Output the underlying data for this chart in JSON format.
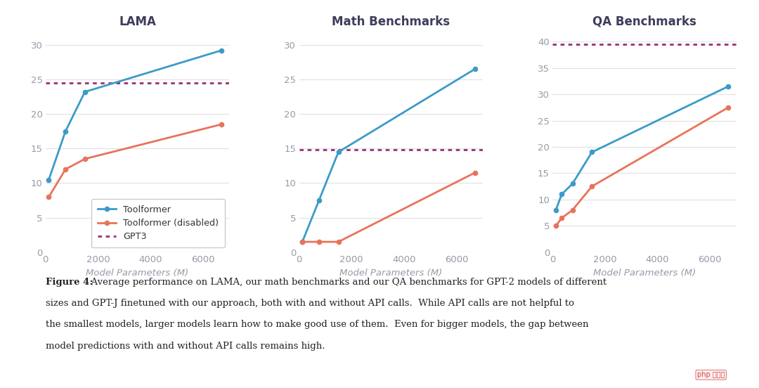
{
  "lama": {
    "title": "LAMA",
    "x": [
      125,
      760,
      1500,
      6700
    ],
    "toolformer": [
      10.5,
      17.5,
      23.2,
      29.2
    ],
    "disabled": [
      8.0,
      12.0,
      13.5,
      18.5
    ],
    "gpt3": 24.5,
    "ylim": [
      0,
      32
    ],
    "yticks": [
      0,
      5,
      10,
      15,
      20,
      25,
      30
    ]
  },
  "math": {
    "title": "Math Benchmarks",
    "x": [
      125,
      760,
      1500,
      6700
    ],
    "toolformer": [
      1.5,
      7.5,
      14.5,
      26.5
    ],
    "disabled": [
      1.5,
      1.5,
      1.5,
      11.5
    ],
    "gpt3": 14.8,
    "ylim": [
      0,
      32
    ],
    "yticks": [
      0,
      5,
      10,
      15,
      20,
      25,
      30
    ]
  },
  "qa": {
    "title": "QA Benchmarks",
    "x": [
      125,
      350,
      760,
      1500,
      6700
    ],
    "toolformer": [
      8.0,
      11.0,
      13.0,
      19.0,
      31.5
    ],
    "disabled": [
      5.0,
      6.5,
      8.0,
      12.5,
      27.5
    ],
    "gpt3": 39.5,
    "ylim": [
      0,
      42
    ],
    "yticks": [
      0,
      5,
      10,
      15,
      20,
      25,
      30,
      35,
      40
    ]
  },
  "colors": {
    "toolformer": "#3B9BC8",
    "disabled": "#E8735A",
    "gpt3": "#9B2D7A"
  },
  "xlabel": "Model Parameters (M)",
  "xlim": [
    0,
    7000
  ],
  "xticks": [
    0,
    2000,
    4000,
    6000
  ],
  "caption_bold": "Figure 4:",
  "caption_normal": "  Average performance on LAMA, our math benchmarks and our QA benchmarks for GPT-2 models of different sizes and GPT-J finetuned with our approach, both with and without API calls.  While API calls are not helpful to the smallest models, larger models learn how to make good use of them.  Even for bigger models, the gap between model predictions with and without API calls remains high.",
  "background_color": "#FFFFFF",
  "title_fontsize": 12,
  "label_fontsize": 9.5,
  "tick_fontsize": 9.5,
  "caption_fontsize": 9.5,
  "tick_color": "#9999AA",
  "title_color": "#3D3D5C",
  "grid_color": "#E0E0E0"
}
